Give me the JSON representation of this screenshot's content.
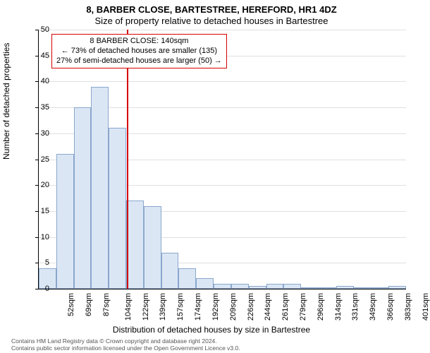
{
  "title_line1": "8, BARBER CLOSE, BARTESTREE, HEREFORD, HR1 4DZ",
  "title_line2": "Size of property relative to detached houses in Bartestree",
  "ylabel": "Number of detached properties",
  "xlabel": "Distribution of detached houses by size in Bartestree",
  "footer_line1": "Contains HM Land Registry data © Crown copyright and database right 2024.",
  "footer_line2": "Contains public sector information licensed under the Open Government Licence v3.0.",
  "chart": {
    "type": "histogram",
    "ylim": [
      0,
      50
    ],
    "ytick_step": 5,
    "yticks": [
      0,
      5,
      10,
      15,
      20,
      25,
      30,
      35,
      40,
      45,
      50
    ],
    "x_labels": [
      "52sqm",
      "69sqm",
      "87sqm",
      "104sqm",
      "122sqm",
      "139sqm",
      "157sqm",
      "174sqm",
      "192sqm",
      "209sqm",
      "226sqm",
      "244sqm",
      "261sqm",
      "279sqm",
      "296sqm",
      "314sqm",
      "331sqm",
      "349sqm",
      "366sqm",
      "383sqm",
      "401sqm"
    ],
    "values": [
      4,
      26,
      35,
      39,
      31,
      17,
      16,
      7,
      4,
      2,
      1,
      1,
      0.5,
      1,
      1,
      0,
      0,
      0.5,
      0,
      0,
      0.5
    ],
    "bar_fill": "#dbe6f5",
    "bar_stroke": "#8aa7cc",
    "background_color": "#ffffff",
    "grid_color": "#e0e0e0",
    "vline_x": 140,
    "vline_color": "#d40000",
    "x_domain_min": 52,
    "x_domain_max": 418,
    "annotation": {
      "border_color": "#d40000",
      "lines": [
        "8 BARBER CLOSE: 140sqm",
        "← 73% of detached houses are smaller (135)",
        "27% of semi-detached houses are larger (50) →"
      ]
    }
  }
}
